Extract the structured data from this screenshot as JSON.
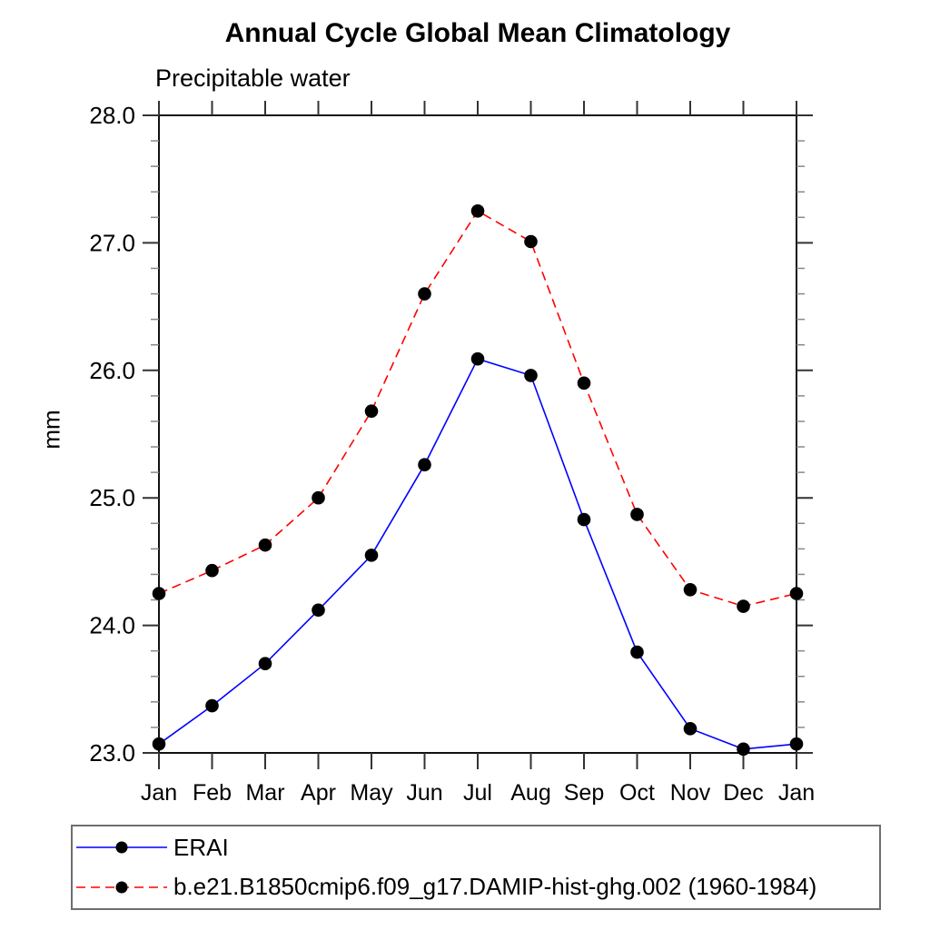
{
  "chart_data": {
    "type": "line",
    "title": "Annual Cycle Global Mean Climatology",
    "subtitle": "Precipitable water",
    "ylabel": "mm",
    "xlabel": "",
    "categories": [
      "Jan",
      "Feb",
      "Mar",
      "Apr",
      "May",
      "Jun",
      "Jul",
      "Aug",
      "Sep",
      "Oct",
      "Nov",
      "Dec",
      "Jan"
    ],
    "series": [
      {
        "name": "ERAI",
        "color": "#0000ff",
        "line_style": "solid",
        "marker": "filled-circle",
        "marker_color": "#000000",
        "values": [
          23.07,
          23.37,
          23.7,
          24.12,
          24.55,
          25.26,
          26.09,
          25.96,
          24.83,
          23.79,
          23.19,
          23.03,
          23.07
        ]
      },
      {
        "name": "b.e21.B1850cmip6.f09_g17.DAMIP-hist-ghg.002 (1960-1984)",
        "color": "#ff0000",
        "line_style": "dashed",
        "marker": "filled-circle",
        "marker_color": "#000000",
        "values": [
          24.25,
          24.43,
          24.63,
          25.0,
          25.68,
          26.6,
          27.25,
          27.01,
          25.9,
          24.87,
          24.28,
          24.15,
          24.25
        ]
      }
    ],
    "ylim": [
      23.0,
      28.0
    ],
    "y_major_step": 1.0,
    "y_minor_step": 0.2,
    "y_tick_labels": [
      "23.0",
      "24.0",
      "25.0",
      "26.0",
      "27.0",
      "28.0"
    ],
    "grid": false,
    "tick_style": "outward-all-four-sides",
    "legend_position": "bottom"
  }
}
